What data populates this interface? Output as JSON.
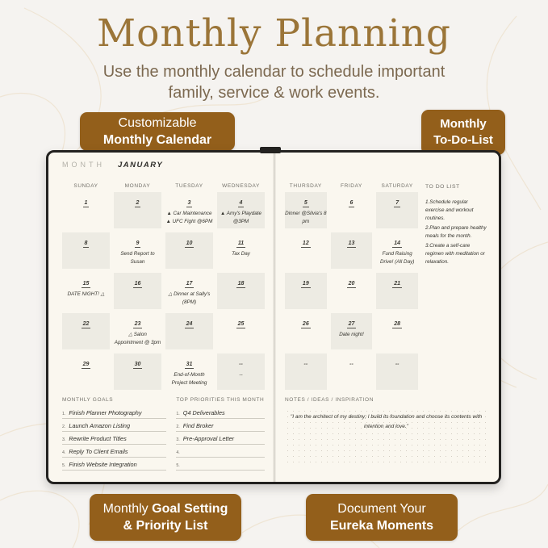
{
  "header": {
    "title": "Monthly Planning",
    "subtitle": "Use the monthly calendar to schedule important family, service & work events."
  },
  "badges": {
    "top_left": {
      "line1": "Customizable",
      "line2": "Monthly Calendar"
    },
    "top_right": {
      "line1": "Monthly",
      "line2": "To-Do-List"
    },
    "bottom_left": {
      "line1_normal": "Monthly",
      "line1_bold": "Goal Setting",
      "line2_bold": "& Priority List"
    },
    "bottom_right": {
      "line1": "Document Your",
      "line2": "Eureka Moments"
    }
  },
  "colors": {
    "badge_brown": "#935f1b",
    "title_gold": "#9b7538",
    "page_cream": "#faf7ef",
    "cell_shade": "#edebe3",
    "cover_black": "#232220"
  },
  "planner": {
    "month_label": "MONTH",
    "month_name": "JANUARY",
    "left_calendar": {
      "day_headers": [
        "SUNDAY",
        "MONDAY",
        "TUESDAY",
        "WEDNESDAY"
      ],
      "weeks": [
        [
          {
            "num": "1",
            "shaded": false,
            "events": []
          },
          {
            "num": "2",
            "shaded": true,
            "events": []
          },
          {
            "num": "3",
            "shaded": false,
            "events": [
              "▲ Car Maintenance",
              "▲ UFC Fight @6PM"
            ]
          },
          {
            "num": "4",
            "shaded": true,
            "events": [
              "▲ Amy's Playdate @3PM"
            ]
          }
        ],
        [
          {
            "num": "8",
            "shaded": true,
            "events": []
          },
          {
            "num": "9",
            "shaded": false,
            "events": [
              "Send Report to Susan"
            ]
          },
          {
            "num": "10",
            "shaded": true,
            "events": []
          },
          {
            "num": "11",
            "shaded": false,
            "events": [
              "Tax Day"
            ]
          }
        ],
        [
          {
            "num": "15",
            "shaded": false,
            "events": [
              "DATE NIGHT! △"
            ]
          },
          {
            "num": "16",
            "shaded": true,
            "events": []
          },
          {
            "num": "17",
            "shaded": false,
            "events": [
              "△ Dinner at Sally's (8PM)"
            ]
          },
          {
            "num": "18",
            "shaded": true,
            "events": []
          }
        ],
        [
          {
            "num": "22",
            "shaded": true,
            "events": []
          },
          {
            "num": "23",
            "shaded": false,
            "events": [
              "△ Salon Appointment @ 3pm"
            ]
          },
          {
            "num": "24",
            "shaded": true,
            "events": []
          },
          {
            "num": "25",
            "shaded": false,
            "events": []
          }
        ],
        [
          {
            "num": "29",
            "shaded": false,
            "events": []
          },
          {
            "num": "30",
            "shaded": true,
            "events": []
          },
          {
            "num": "31",
            "shaded": false,
            "events": [
              "End-of-Month Project Meeting"
            ]
          },
          {
            "num": "--",
            "shaded": true,
            "events": [
              "--"
            ]
          }
        ]
      ]
    },
    "right_calendar": {
      "day_headers": [
        "THURSDAY",
        "FRIDAY",
        "SATURDAY"
      ],
      "weeks": [
        [
          {
            "num": "5",
            "shaded": true,
            "events": [
              "Dinner @Silvia's 8 pm"
            ]
          },
          {
            "num": "6",
            "shaded": false,
            "events": []
          },
          {
            "num": "7",
            "shaded": true,
            "events": []
          }
        ],
        [
          {
            "num": "12",
            "shaded": false,
            "events": []
          },
          {
            "num": "13",
            "shaded": true,
            "events": []
          },
          {
            "num": "14",
            "shaded": false,
            "events": [
              "Fund Raising Drive! (All Day)"
            ]
          }
        ],
        [
          {
            "num": "19",
            "shaded": true,
            "events": []
          },
          {
            "num": "20",
            "shaded": false,
            "events": []
          },
          {
            "num": "21",
            "shaded": true,
            "events": []
          }
        ],
        [
          {
            "num": "26",
            "shaded": false,
            "events": []
          },
          {
            "num": "27",
            "shaded": true,
            "events": [
              "Date night!"
            ]
          },
          {
            "num": "28",
            "shaded": false,
            "events": []
          }
        ],
        [
          {
            "num": "--",
            "shaded": true,
            "events": []
          },
          {
            "num": "--",
            "shaded": false,
            "events": []
          },
          {
            "num": "--",
            "shaded": true,
            "events": []
          }
        ]
      ]
    },
    "todo": {
      "title": "TO DO LIST",
      "items": [
        "Schedule regular exercise and workout routines.",
        "Plan and prepare healthy meals for the month.",
        "Create a self-care regimen with meditation or relaxation."
      ]
    },
    "goals": {
      "title": "MONTHLY GOALS",
      "items": [
        "Finish Planner Photography",
        "Launch Amazon Listing",
        "Rewrite Product Titles",
        "Reply To Client Emails",
        "Finish Website Integration"
      ]
    },
    "priorities": {
      "title": "TOP PRIORITIES THIS MONTH",
      "items": [
        "Q4 Deliverables",
        "Find Broker",
        "Pre-Approval Letter",
        "",
        ""
      ]
    },
    "notes": {
      "title": "NOTES / IDEAS / INSPIRATION",
      "quote": "\"I am the architect of my destiny; I build its foundation and choose its contents with intention and love.\""
    }
  }
}
